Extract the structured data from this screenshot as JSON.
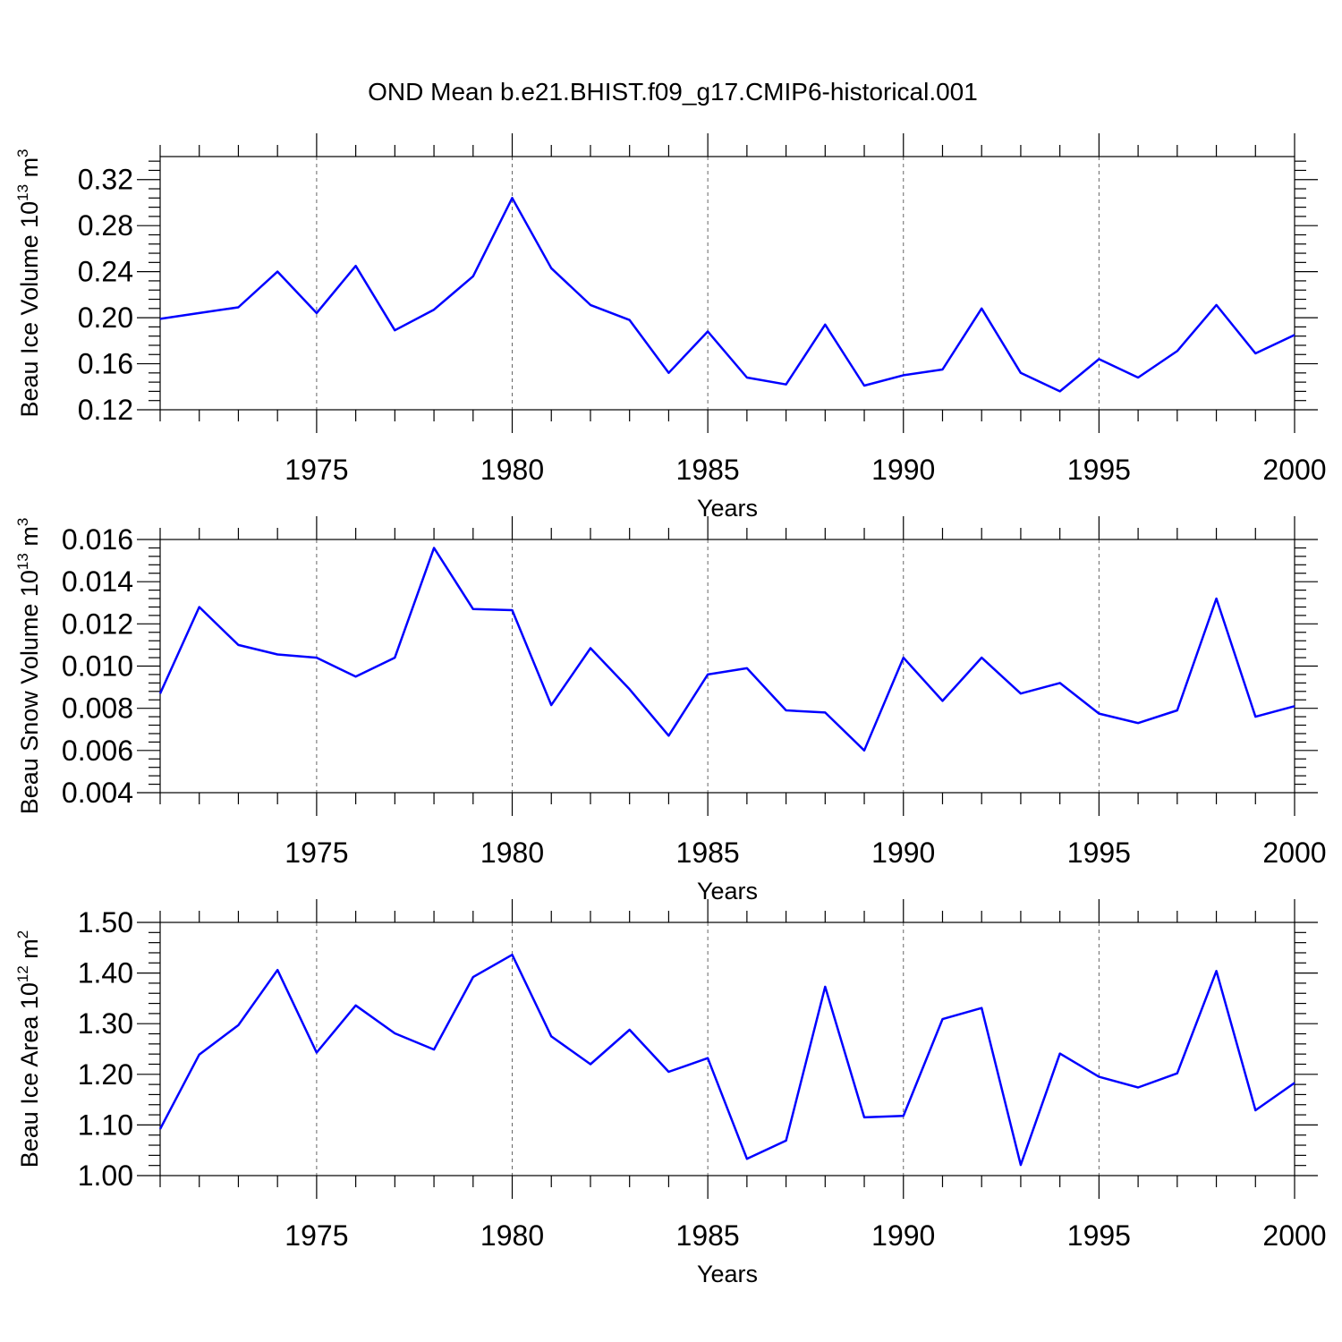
{
  "title": "OND Mean b.e21.BHIST.f09_g17.CMIP6-historical.001",
  "colors": {
    "line": "#0000ff",
    "axis": "#000000",
    "grid": "#666666"
  },
  "chart_data": [
    {
      "type": "line",
      "ylabel": "Beau Ice Volume 10",
      "ylabel_exp": "13",
      "ylabel_unit": " m",
      "ylabel_unit_exp": "3",
      "xlabel": "Years",
      "xlim": [
        1971,
        2000
      ],
      "ylim": [
        0.12,
        0.34
      ],
      "yticks": [
        0.12,
        0.16,
        0.2,
        0.24,
        0.28,
        0.32
      ],
      "ytick_labels": [
        "0.12",
        "0.16",
        "0.20",
        "0.24",
        "0.28",
        "0.32"
      ],
      "xticks": [
        1975,
        1980,
        1985,
        1990,
        1995,
        2000
      ],
      "xtick_labels": [
        "1975",
        "1980",
        "1985",
        "1990",
        "1995",
        "2000"
      ],
      "grid": "vertical dashed at major x ticks",
      "x": [
        1971,
        1972,
        1973,
        1974,
        1975,
        1976,
        1977,
        1978,
        1979,
        1980,
        1981,
        1982,
        1983,
        1984,
        1985,
        1986,
        1987,
        1988,
        1989,
        1990,
        1991,
        1992,
        1993,
        1994,
        1995,
        1996,
        1997,
        1998,
        1999,
        2000
      ],
      "values": [
        0.199,
        0.204,
        0.209,
        0.24,
        0.204,
        0.245,
        0.189,
        0.207,
        0.236,
        0.304,
        0.243,
        0.211,
        0.198,
        0.152,
        0.188,
        0.148,
        0.142,
        0.194,
        0.141,
        0.15,
        0.155,
        0.208,
        0.152,
        0.136,
        0.164,
        0.148,
        0.171,
        0.211,
        0.169,
        0.185
      ]
    },
    {
      "type": "line",
      "ylabel": "Beau Snow Volume 10",
      "ylabel_exp": "13",
      "ylabel_unit": " m",
      "ylabel_unit_exp": "3",
      "xlabel": "Years",
      "xlim": [
        1971,
        2000
      ],
      "ylim": [
        0.004,
        0.016
      ],
      "yticks": [
        0.004,
        0.006,
        0.008,
        0.01,
        0.012,
        0.014,
        0.016
      ],
      "ytick_labels": [
        "0.004",
        "0.006",
        "0.008",
        "0.010",
        "0.012",
        "0.014",
        "0.016"
      ],
      "xticks": [
        1975,
        1980,
        1985,
        1990,
        1995,
        2000
      ],
      "xtick_labels": [
        "1975",
        "1980",
        "1985",
        "1990",
        "1995",
        "2000"
      ],
      "grid": "vertical dashed at major x ticks",
      "x": [
        1971,
        1972,
        1973,
        1974,
        1975,
        1976,
        1977,
        1978,
        1979,
        1980,
        1981,
        1982,
        1983,
        1984,
        1985,
        1986,
        1987,
        1988,
        1989,
        1990,
        1991,
        1992,
        1993,
        1994,
        1995,
        1996,
        1997,
        1998,
        1999,
        2000
      ],
      "values": [
        0.0087,
        0.0128,
        0.011,
        0.01055,
        0.0104,
        0.0095,
        0.0104,
        0.0156,
        0.0127,
        0.01265,
        0.00815,
        0.01085,
        0.0089,
        0.0067,
        0.0096,
        0.0099,
        0.0079,
        0.0078,
        0.006,
        0.0104,
        0.00835,
        0.0104,
        0.0087,
        0.0092,
        0.00775,
        0.0073,
        0.0079,
        0.0132,
        0.0076,
        0.0081
      ]
    },
    {
      "type": "line",
      "ylabel": "Beau Ice Area 10",
      "ylabel_exp": "12",
      "ylabel_unit": " m",
      "ylabel_unit_exp": "2",
      "xlabel": "Years",
      "xlim": [
        1971,
        2000
      ],
      "ylim": [
        1.0,
        1.5
      ],
      "yticks": [
        1.0,
        1.1,
        1.2,
        1.3,
        1.4,
        1.5
      ],
      "ytick_labels": [
        "1.00",
        "1.10",
        "1.20",
        "1.30",
        "1.40",
        "1.50"
      ],
      "xticks": [
        1975,
        1980,
        1985,
        1990,
        1995,
        2000
      ],
      "xtick_labels": [
        "1975",
        "1980",
        "1985",
        "1990",
        "1995",
        "2000"
      ],
      "grid": "vertical dashed at major x ticks",
      "x": [
        1971,
        1972,
        1973,
        1974,
        1975,
        1976,
        1977,
        1978,
        1979,
        1980,
        1981,
        1982,
        1983,
        1984,
        1985,
        1986,
        1987,
        1988,
        1989,
        1990,
        1991,
        1992,
        1993,
        1994,
        1995,
        1996,
        1997,
        1998,
        1999,
        2000
      ],
      "values": [
        1.092,
        1.239,
        1.297,
        1.406,
        1.243,
        1.336,
        1.281,
        1.249,
        1.392,
        1.436,
        1.275,
        1.22,
        1.288,
        1.205,
        1.232,
        1.033,
        1.069,
        1.373,
        1.115,
        1.118,
        1.309,
        1.331,
        1.021,
        1.241,
        1.195,
        1.174,
        1.202,
        1.404,
        1.129,
        1.183
      ]
    }
  ]
}
